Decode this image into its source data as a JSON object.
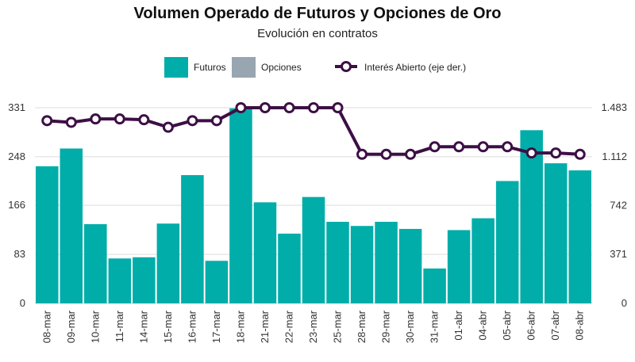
{
  "chart_data": {
    "type": "bar",
    "title": "Volumen Operado de Futuros y Opciones de Oro",
    "subtitle": "Evolución en contratos",
    "categories": [
      "08-mar",
      "09-mar",
      "10-mar",
      "11-mar",
      "14-mar",
      "15-mar",
      "16-mar",
      "17-mar",
      "18-mar",
      "21-mar",
      "22-mar",
      "23-mar",
      "25-mar",
      "28-mar",
      "29-mar",
      "30-mar",
      "31-mar",
      "01-abr",
      "04-abr",
      "05-abr",
      "06-abr",
      "07-abr",
      "08-abr"
    ],
    "series": [
      {
        "name": "Futuros",
        "kind": "bar",
        "axis": "left",
        "color": "#00ADA9",
        "values": [
          232,
          262,
          134,
          76,
          78,
          135,
          217,
          72,
          330,
          171,
          118,
          180,
          138,
          131,
          138,
          126,
          59,
          124,
          144,
          207,
          293,
          237,
          225
        ]
      },
      {
        "name": "Opciones",
        "kind": "bar",
        "axis": "left",
        "color": "#97A6B1",
        "values": [
          0,
          0,
          0,
          0,
          0,
          0,
          0,
          0,
          0,
          0,
          0,
          0,
          0,
          0,
          0,
          0,
          0,
          0,
          0,
          0,
          0,
          0,
          0
        ]
      },
      {
        "name": "Interés Abierto (eje der.)",
        "kind": "line",
        "axis": "right",
        "color": "#3D0F45",
        "values": [
          1385,
          1372,
          1398,
          1398,
          1392,
          1335,
          1385,
          1385,
          1483,
          1483,
          1483,
          1483,
          1483,
          1130,
          1130,
          1130,
          1187,
          1187,
          1187,
          1187,
          1140,
          1140,
          1130
        ]
      }
    ],
    "y_left": {
      "ticks": [
        0,
        83,
        166,
        248,
        331
      ],
      "labels": [
        "0",
        "83",
        "166",
        "248",
        "331"
      ],
      "lim": [
        0,
        331
      ]
    },
    "y_right": {
      "ticks": [
        0,
        371,
        742,
        1112,
        1483
      ],
      "labels": [
        "0",
        "371",
        "742",
        "1.112",
        "1.483"
      ],
      "lim": [
        0,
        1483
      ]
    },
    "grid": true,
    "legend_position": "top"
  }
}
